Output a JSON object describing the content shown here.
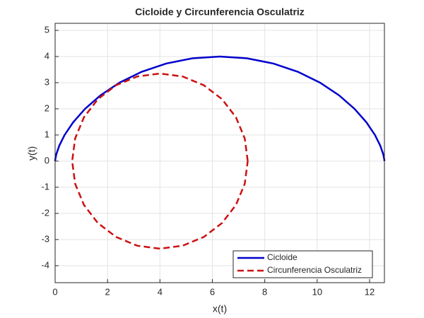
{
  "chart_data": {
    "type": "line",
    "title": "Cicloide y Circunferencia Osculatriz",
    "x_label": "x(t)",
    "y_label": "y(t)",
    "xlim": [
      0,
      12.566
    ],
    "ylim": [
      -4.65,
      5.27
    ],
    "xticks": [
      0,
      2,
      4,
      6,
      8,
      10,
      12
    ],
    "yticks": [
      -4,
      -3,
      -2,
      -1,
      0,
      1,
      2,
      3,
      4,
      5
    ],
    "grid": true,
    "legend_position": "lower-right",
    "series": [
      {
        "name": "Cicloide",
        "color": "#0000cc",
        "style": "solid",
        "x": [
          0,
          0.006,
          0.047,
          0.157,
          0.362,
          0.686,
          1.142,
          1.733,
          2.457,
          3.298,
          4.236,
          5.242,
          6.283,
          7.324,
          8.33,
          9.268,
          10.109,
          10.833,
          11.424,
          11.88,
          12.204,
          12.409,
          12.519,
          12.56,
          12.566
        ],
        "values": [
          0,
          0.068,
          0.268,
          0.586,
          1.0,
          1.482,
          2.0,
          2.518,
          3.0,
          3.414,
          3.732,
          3.932,
          4.0,
          3.932,
          3.732,
          3.414,
          3.0,
          2.518,
          2.0,
          1.482,
          1.0,
          0.586,
          0.268,
          0.068,
          0
        ]
      },
      {
        "name": "Circunferencia Osculatriz",
        "color": "#cc1111",
        "style": "dashed",
        "x": [
          7.35,
          7.236,
          6.901,
          6.369,
          5.675,
          4.867,
          4.0,
          3.133,
          2.325,
          1.631,
          1.099,
          0.764,
          0.65,
          0.764,
          1.099,
          1.631,
          2.325,
          3.133,
          4.0,
          4.867,
          5.675,
          6.369,
          6.901,
          7.236,
          7.35
        ],
        "values": [
          0,
          0.867,
          1.675,
          2.369,
          2.901,
          3.236,
          3.35,
          3.236,
          2.901,
          2.369,
          1.675,
          0.867,
          0,
          -0.867,
          -1.675,
          -2.369,
          -2.901,
          -3.236,
          -3.35,
          -3.236,
          -2.901,
          -2.369,
          -1.675,
          -0.867,
          0
        ]
      }
    ]
  }
}
